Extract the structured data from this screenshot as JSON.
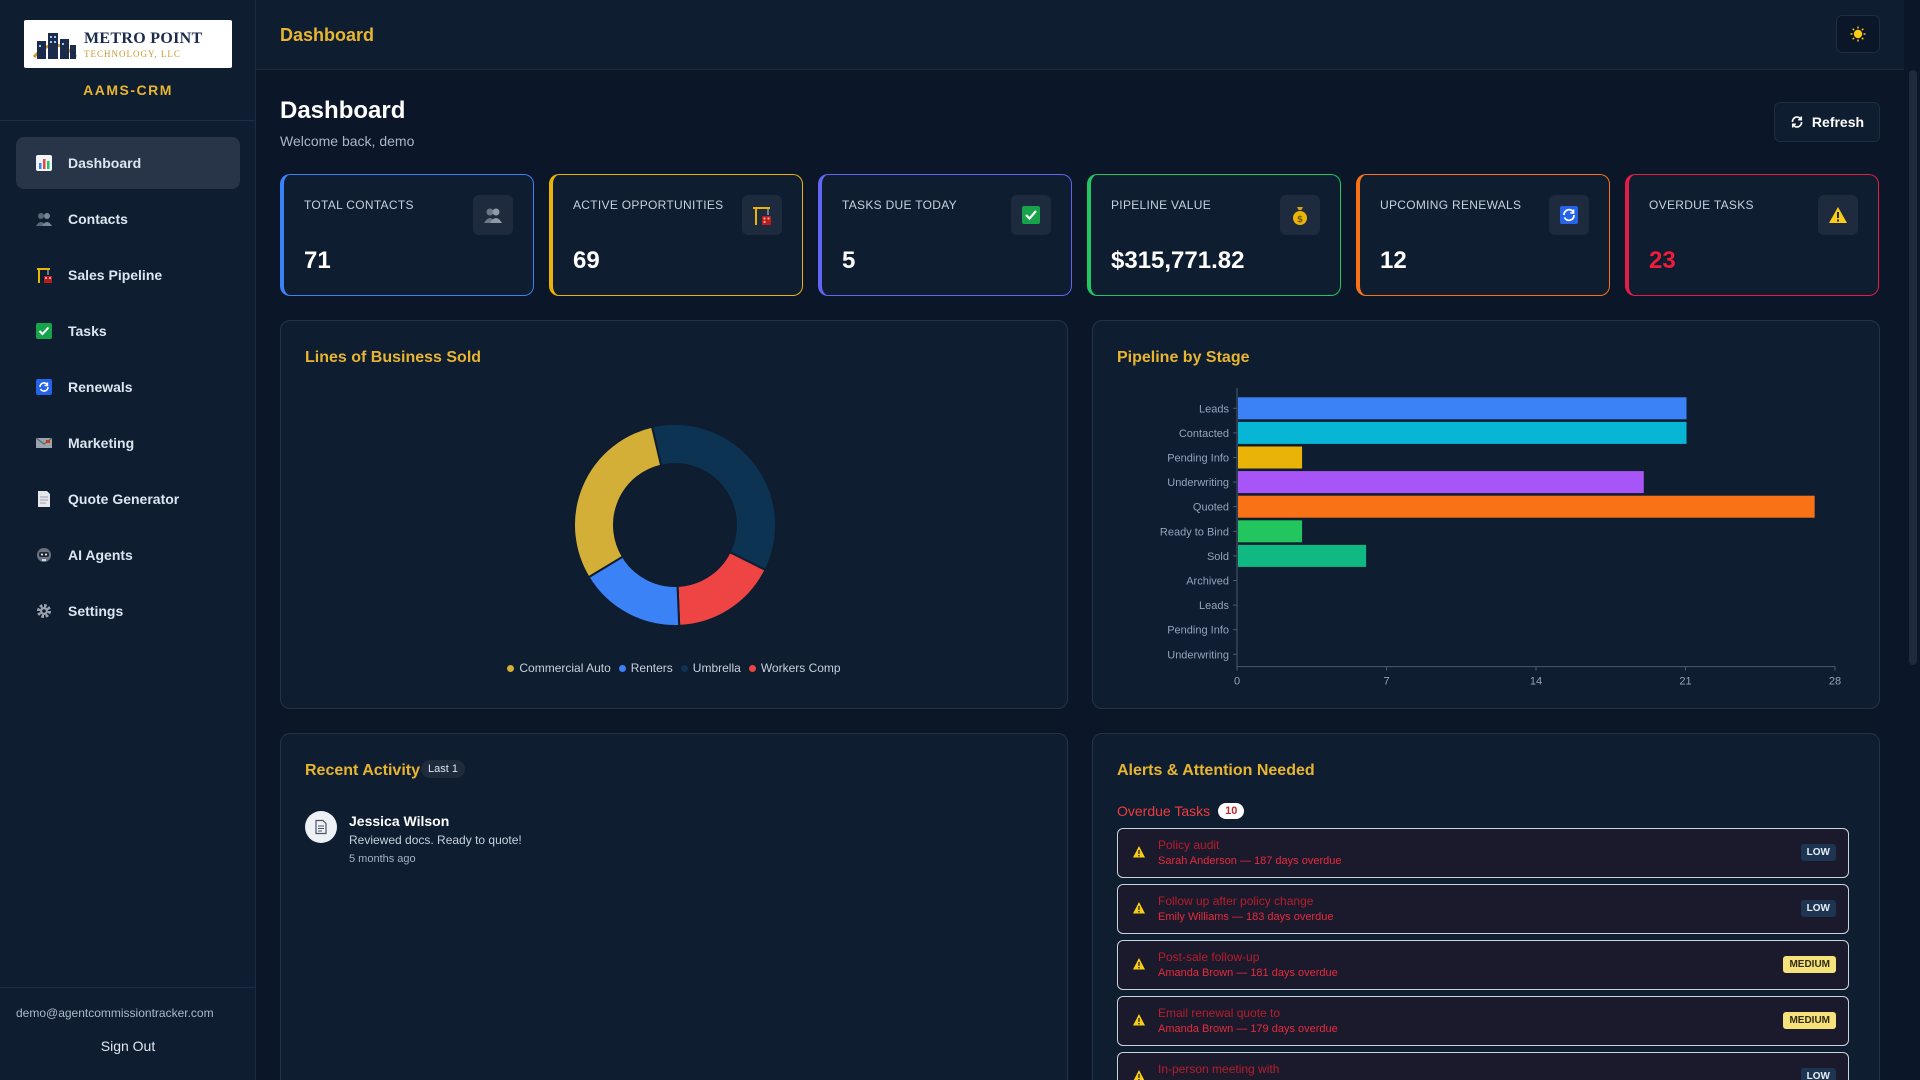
{
  "sidebar": {
    "logo": {
      "main": "METRO POINT",
      "sub": "TECHNOLOGY, LLC"
    },
    "app_name": "AAMS-CRM",
    "nav": [
      {
        "label": "Dashboard",
        "icon": "bar-chart-icon",
        "active": true
      },
      {
        "label": "Contacts",
        "icon": "people-icon"
      },
      {
        "label": "Sales Pipeline",
        "icon": "crane-icon"
      },
      {
        "label": "Tasks",
        "icon": "checkmark-icon"
      },
      {
        "label": "Renewals",
        "icon": "refresh-icon"
      },
      {
        "label": "Marketing",
        "icon": "envelope-icon"
      },
      {
        "label": "Quote Generator",
        "icon": "document-icon"
      },
      {
        "label": "AI Agents",
        "icon": "robot-icon"
      },
      {
        "label": "Settings",
        "icon": "gear-icon"
      }
    ],
    "user_email": "demo@agentcommissiontracker.com",
    "sign_out": "Sign Out"
  },
  "topbar": {
    "title": "Dashboard",
    "theme_icon": "sun-icon"
  },
  "header": {
    "title": "Dashboard",
    "welcome": "Welcome back, demo",
    "refresh_label": "Refresh"
  },
  "stats": [
    {
      "label": "TOTAL CONTACTS",
      "value": "71",
      "icon": "people-icon",
      "color": "#3b82f6"
    },
    {
      "label": "ACTIVE OPPORTUNITIES",
      "value": "69",
      "icon": "crane-icon",
      "color": "#eab308"
    },
    {
      "label": "TASKS DUE TODAY",
      "value": "5",
      "icon": "checkmark-icon",
      "color": "#6366f1"
    },
    {
      "label": "PIPELINE VALUE",
      "value": "$315,771.82",
      "icon": "money-bag-icon",
      "color": "#22c55e"
    },
    {
      "label": "UPCOMING RENEWALS",
      "value": "12",
      "icon": "refresh-icon",
      "color": "#f97316"
    },
    {
      "label": "OVERDUE TASKS",
      "value": "23",
      "icon": "warning-icon",
      "color": "#e11d48"
    }
  ],
  "lines_of_business": {
    "title": "Lines of Business Sold",
    "legend": [
      "Commercial Auto",
      "Renters",
      "Umbrella",
      "Workers Comp"
    ]
  },
  "pipeline_by_stage": {
    "title": "Pipeline by Stage"
  },
  "recent_activity": {
    "title": "Recent Activity",
    "badge": "Last 1",
    "items": [
      {
        "name": "Jessica Wilson",
        "desc": "Reviewed docs. Ready to quote!",
        "time": "5 months ago"
      }
    ]
  },
  "alerts": {
    "title": "Alerts & Attention Needed",
    "overdue_label": "Overdue Tasks",
    "overdue_count": "10",
    "items": [
      {
        "title": "Policy audit",
        "sub": "Sarah Anderson — 187 days overdue",
        "priority": "LOW"
      },
      {
        "title": "Follow up after policy change",
        "sub": "Emily Williams — 183 days overdue",
        "priority": "LOW"
      },
      {
        "title": "Post-sale follow-up",
        "sub": "Amanda Brown — 181 days overdue",
        "priority": "MEDIUM"
      },
      {
        "title": "Email renewal quote to",
        "sub": "Amanda Brown — 179 days overdue",
        "priority": "MEDIUM"
      },
      {
        "title": "In-person meeting with",
        "sub": "",
        "priority": "LOW"
      }
    ]
  },
  "chart_data": [
    {
      "type": "pie",
      "title": "Lines of Business Sold",
      "categories": [
        "Commercial Auto",
        "Renters",
        "Umbrella",
        "Workers Comp"
      ],
      "values": [
        30,
        17,
        36,
        17
      ],
      "colors": [
        "#d4af37",
        "#3b82f6",
        "#0d3352",
        "#ef4444"
      ],
      "donut": true
    },
    {
      "type": "bar",
      "orientation": "horizontal",
      "title": "Pipeline by Stage",
      "categories": [
        "Leads",
        "Contacted",
        "Pending Info",
        "Underwriting",
        "Quoted",
        "Ready to Bind",
        "Sold",
        "Archived",
        "Leads",
        "Pending Info",
        "Underwriting"
      ],
      "values": [
        21,
        21,
        3,
        19,
        27,
        3,
        6,
        0,
        0,
        0,
        0
      ],
      "colors": [
        "#3b82f6",
        "#06b6d4",
        "#eab308",
        "#a855f7",
        "#f97316",
        "#22c55e",
        "#10b981",
        "#64748b",
        "#3b82f6",
        "#eab308",
        "#a855f7"
      ],
      "xlim": [
        0,
        28
      ],
      "xticks": [
        0,
        7,
        14,
        21,
        28
      ],
      "grid": false
    }
  ]
}
